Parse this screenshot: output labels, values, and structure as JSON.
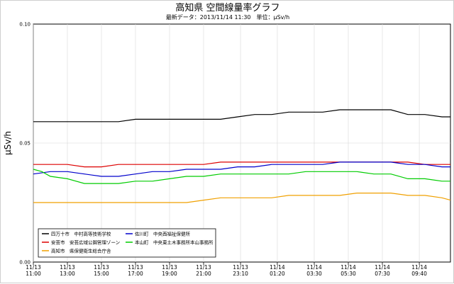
{
  "chart_data": {
    "type": "line",
    "title": "高知県 空間線量率グラフ",
    "subtitle": "最新データ：2013/11/14 11:30　単位：μSv/h",
    "ylabel": "μSv/h",
    "ylim": [
      0.0,
      0.1
    ],
    "y_ticks": [
      "0.00",
      "0.05",
      "0.10"
    ],
    "y_tick_values": [
      0.0,
      0.05,
      0.1
    ],
    "xlim": [
      0,
      24.5
    ],
    "x_ticks": [
      {
        "hours": 0,
        "date": "11/13",
        "time": "11:00"
      },
      {
        "hours": 2,
        "date": "11/13",
        "time": "13:00"
      },
      {
        "hours": 4,
        "date": "11/13",
        "time": "15:00"
      },
      {
        "hours": 6,
        "date": "11/13",
        "time": "17:00"
      },
      {
        "hours": 8,
        "date": "11/13",
        "time": "19:00"
      },
      {
        "hours": 10,
        "date": "11/13",
        "time": "21:00"
      },
      {
        "hours": 12.17,
        "date": "11/13",
        "time": "23:10"
      },
      {
        "hours": 14.33,
        "date": "11/14",
        "time": "01:20"
      },
      {
        "hours": 16.5,
        "date": "11/14",
        "time": "03:30"
      },
      {
        "hours": 18.5,
        "date": "11/14",
        "time": "05:30"
      },
      {
        "hours": 20.5,
        "date": "11/14",
        "time": "07:30"
      },
      {
        "hours": 22.67,
        "date": "11/14",
        "time": "09:40"
      }
    ],
    "grid": true,
    "legend_position": "bottom-left",
    "series": [
      {
        "name": "四万十市　中村高等技術学校",
        "color": "#000000",
        "points": [
          [
            0,
            0.059
          ],
          [
            1,
            0.059
          ],
          [
            2,
            0.059
          ],
          [
            3,
            0.059
          ],
          [
            4,
            0.059
          ],
          [
            5,
            0.059
          ],
          [
            6,
            0.06
          ],
          [
            7,
            0.06
          ],
          [
            8,
            0.06
          ],
          [
            9,
            0.06
          ],
          [
            10,
            0.06
          ],
          [
            11,
            0.06
          ],
          [
            12,
            0.061
          ],
          [
            13,
            0.062
          ],
          [
            14,
            0.062
          ],
          [
            15,
            0.063
          ],
          [
            16,
            0.063
          ],
          [
            17,
            0.063
          ],
          [
            18,
            0.064
          ],
          [
            19,
            0.064
          ],
          [
            20,
            0.064
          ],
          [
            21,
            0.064
          ],
          [
            22,
            0.062
          ],
          [
            23,
            0.062
          ],
          [
            24,
            0.061
          ],
          [
            24.5,
            0.061
          ]
        ]
      },
      {
        "name": "安芸市　安芸広域公園管理ゾーン",
        "color": "#dd0000",
        "points": [
          [
            0,
            0.041
          ],
          [
            1,
            0.041
          ],
          [
            2,
            0.041
          ],
          [
            3,
            0.04
          ],
          [
            4,
            0.04
          ],
          [
            5,
            0.041
          ],
          [
            6,
            0.041
          ],
          [
            7,
            0.041
          ],
          [
            8,
            0.041
          ],
          [
            9,
            0.041
          ],
          [
            10,
            0.041
          ],
          [
            11,
            0.042
          ],
          [
            12,
            0.042
          ],
          [
            13,
            0.042
          ],
          [
            14,
            0.042
          ],
          [
            15,
            0.042
          ],
          [
            16,
            0.042
          ],
          [
            17,
            0.042
          ],
          [
            18,
            0.042
          ],
          [
            19,
            0.042
          ],
          [
            20,
            0.042
          ],
          [
            21,
            0.042
          ],
          [
            22,
            0.042
          ],
          [
            23,
            0.041
          ],
          [
            24,
            0.041
          ],
          [
            24.5,
            0.041
          ]
        ]
      },
      {
        "name": "高知市　県保健衛生総合庁舎",
        "color": "#f0a000",
        "points": [
          [
            0,
            0.025
          ],
          [
            1,
            0.025
          ],
          [
            2,
            0.025
          ],
          [
            3,
            0.025
          ],
          [
            4,
            0.025
          ],
          [
            5,
            0.025
          ],
          [
            6,
            0.025
          ],
          [
            7,
            0.025
          ],
          [
            8,
            0.025
          ],
          [
            9,
            0.025
          ],
          [
            10,
            0.026
          ],
          [
            11,
            0.027
          ],
          [
            12,
            0.027
          ],
          [
            13,
            0.027
          ],
          [
            14,
            0.027
          ],
          [
            15,
            0.028
          ],
          [
            16,
            0.028
          ],
          [
            17,
            0.028
          ],
          [
            18,
            0.028
          ],
          [
            19,
            0.029
          ],
          [
            20,
            0.029
          ],
          [
            21,
            0.029
          ],
          [
            22,
            0.028
          ],
          [
            23,
            0.028
          ],
          [
            24,
            0.027
          ],
          [
            24.5,
            0.026
          ]
        ]
      },
      {
        "name": "佐川町　中央西福祉保健所",
        "color": "#0000cc",
        "points": [
          [
            0,
            0.037
          ],
          [
            1,
            0.038
          ],
          [
            2,
            0.038
          ],
          [
            3,
            0.037
          ],
          [
            4,
            0.036
          ],
          [
            5,
            0.036
          ],
          [
            6,
            0.037
          ],
          [
            7,
            0.038
          ],
          [
            8,
            0.038
          ],
          [
            9,
            0.039
          ],
          [
            10,
            0.039
          ],
          [
            11,
            0.039
          ],
          [
            12,
            0.04
          ],
          [
            13,
            0.04
          ],
          [
            14,
            0.041
          ],
          [
            15,
            0.041
          ],
          [
            16,
            0.041
          ],
          [
            17,
            0.041
          ],
          [
            18,
            0.042
          ],
          [
            19,
            0.042
          ],
          [
            20,
            0.042
          ],
          [
            21,
            0.042
          ],
          [
            22,
            0.041
          ],
          [
            23,
            0.041
          ],
          [
            24,
            0.04
          ],
          [
            24.5,
            0.04
          ]
        ]
      },
      {
        "name": "本山町　中央東土木事務所本山事務所",
        "color": "#00cc00",
        "points": [
          [
            0,
            0.039
          ],
          [
            0.5,
            0.038
          ],
          [
            1,
            0.036
          ],
          [
            2,
            0.035
          ],
          [
            3,
            0.033
          ],
          [
            4,
            0.033
          ],
          [
            5,
            0.033
          ],
          [
            6,
            0.034
          ],
          [
            7,
            0.034
          ],
          [
            8,
            0.035
          ],
          [
            9,
            0.036
          ],
          [
            10,
            0.036
          ],
          [
            11,
            0.037
          ],
          [
            12,
            0.037
          ],
          [
            13,
            0.037
          ],
          [
            14,
            0.037
          ],
          [
            15,
            0.037
          ],
          [
            16,
            0.038
          ],
          [
            17,
            0.038
          ],
          [
            18,
            0.038
          ],
          [
            19,
            0.038
          ],
          [
            20,
            0.037
          ],
          [
            21,
            0.037
          ],
          [
            22,
            0.035
          ],
          [
            23,
            0.035
          ],
          [
            24,
            0.034
          ],
          [
            24.5,
            0.034
          ]
        ]
      }
    ]
  }
}
